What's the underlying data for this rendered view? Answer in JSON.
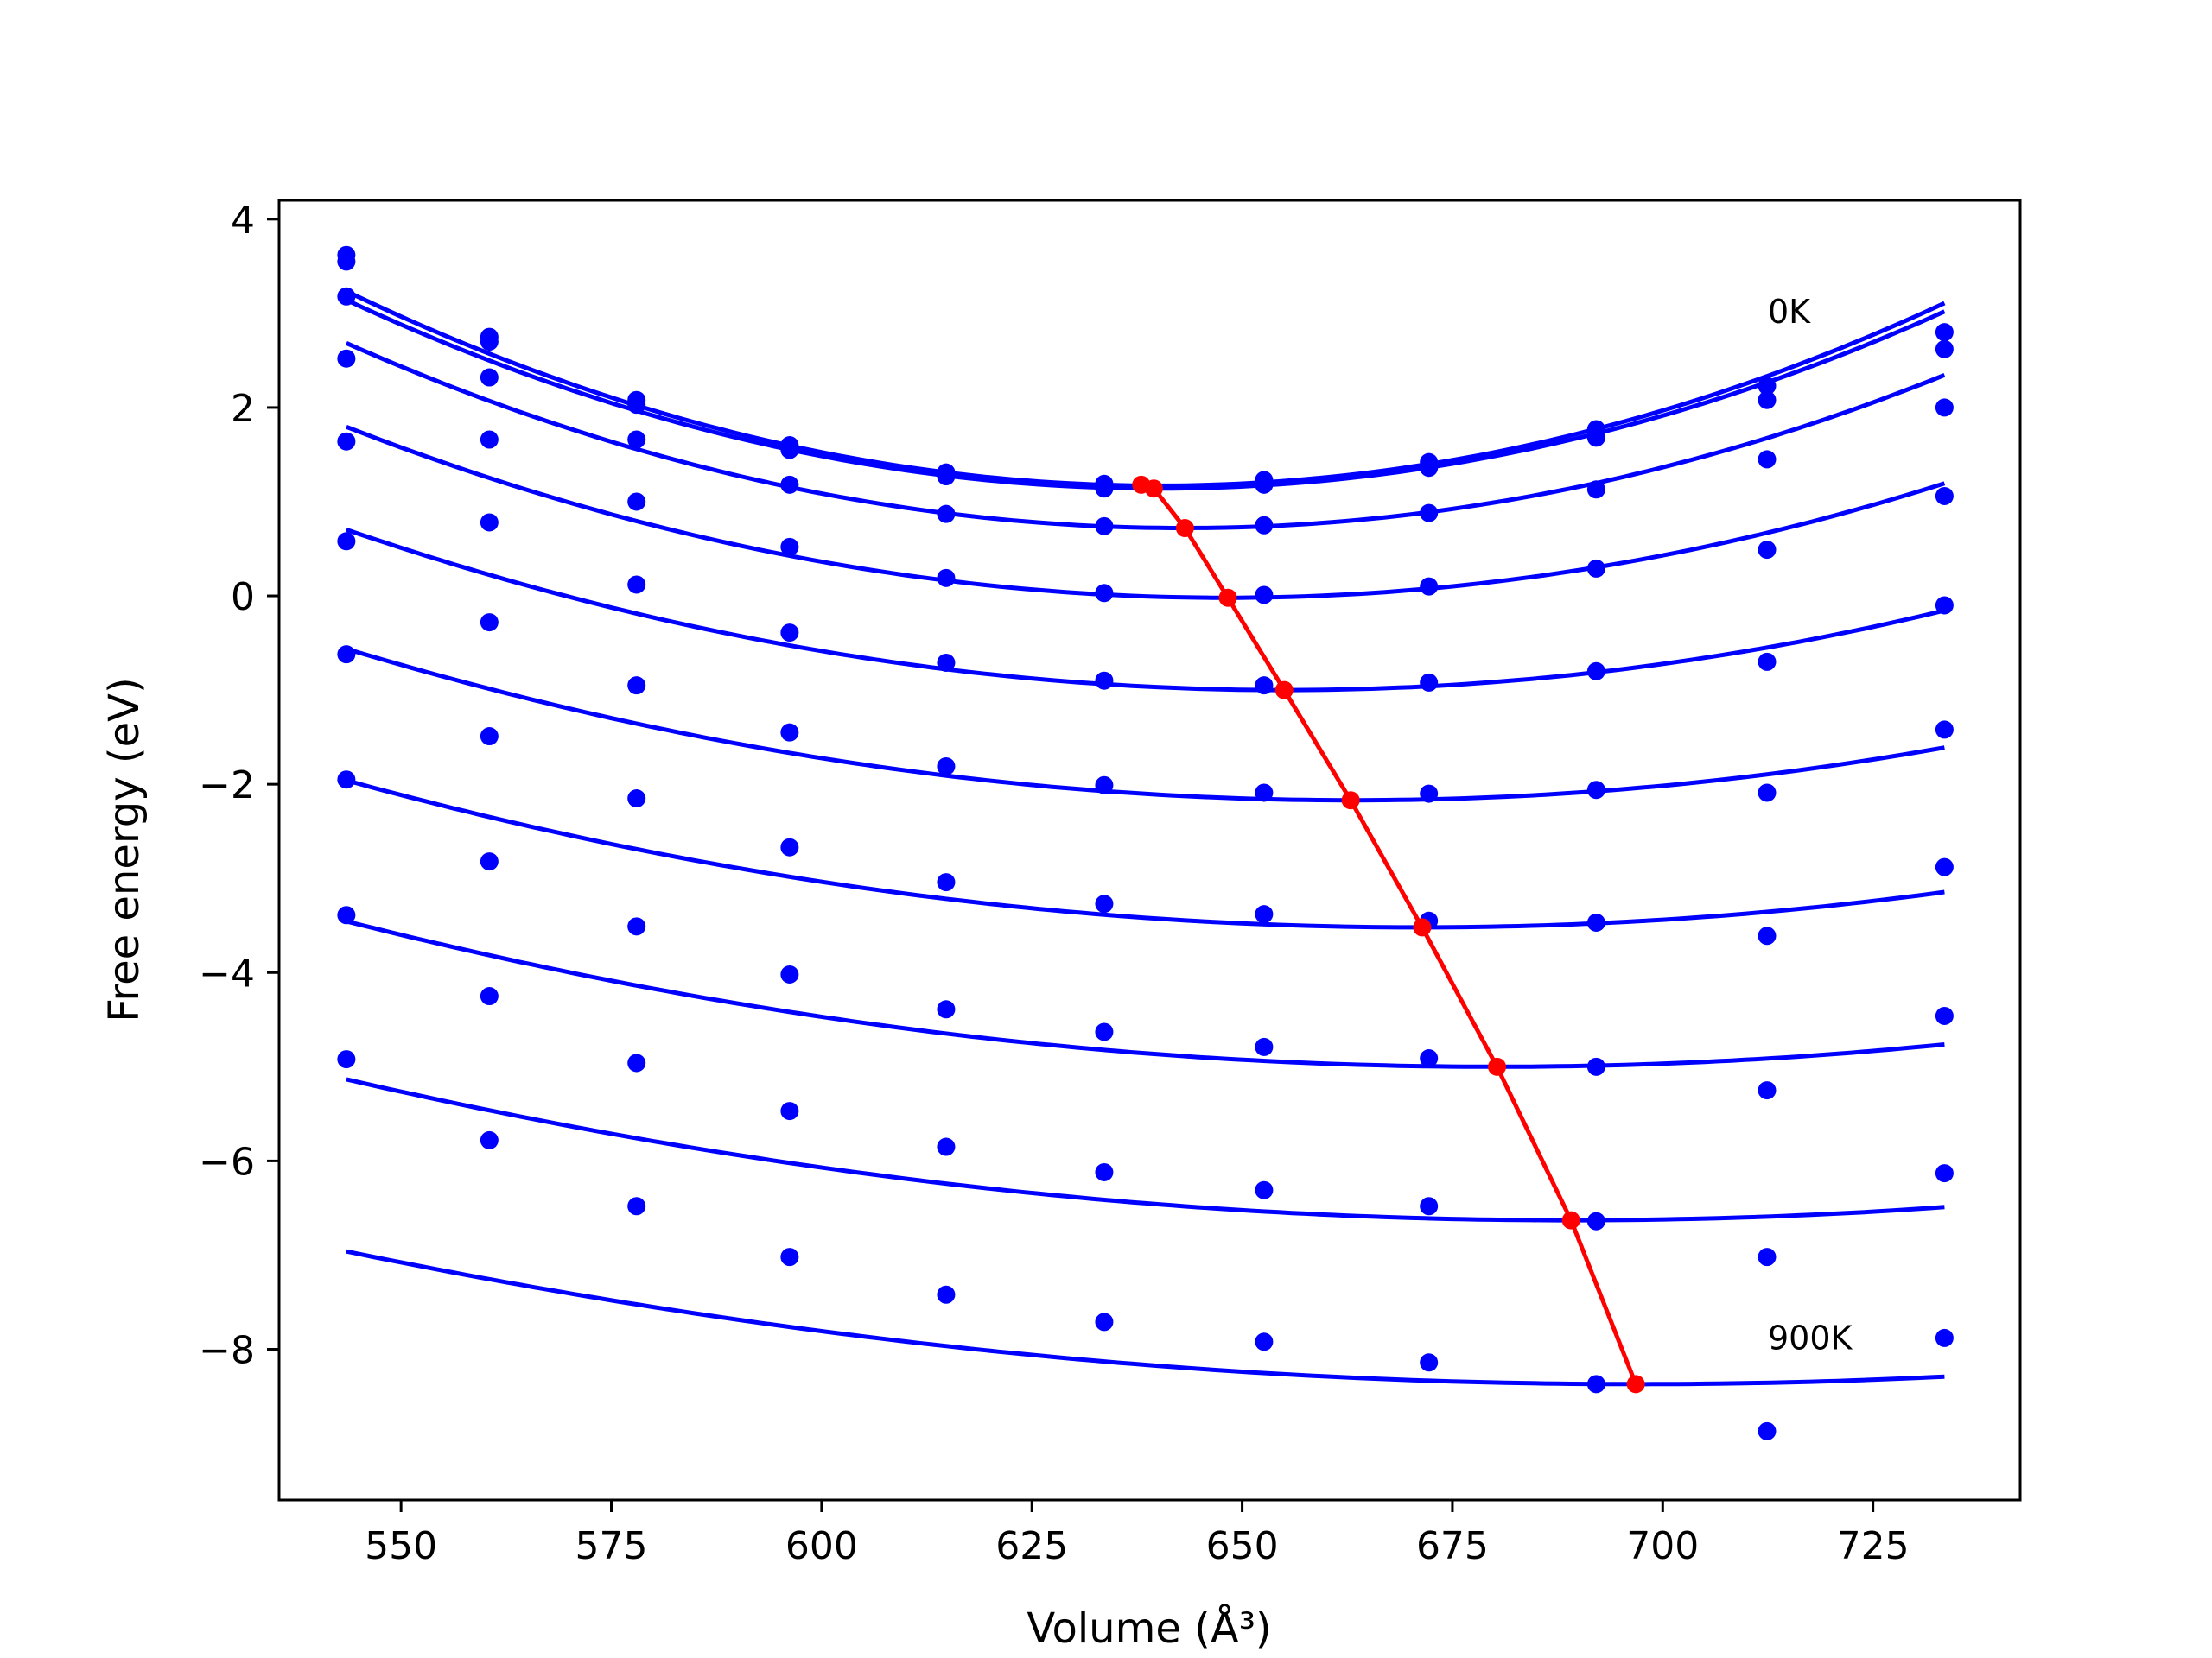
{
  "chart_data": {
    "type": "scatter",
    "xlabel": "Volume (Å³)",
    "ylabel": "Free energy (eV)",
    "xlim": [
      535.5,
      742.5
    ],
    "ylim": [
      -9.6,
      4.2
    ],
    "xticks": [
      550,
      575,
      600,
      625,
      650,
      675,
      700,
      725
    ],
    "xtick_labels": [
      "550",
      "575",
      "600",
      "625",
      "650",
      "675",
      "700",
      "725"
    ],
    "yticks": [
      -8,
      -6,
      -4,
      -2,
      0,
      2,
      4
    ],
    "ytick_labels": [
      "−8",
      "−6",
      "−4",
      "−2",
      "0",
      "2",
      "4"
    ],
    "grid": false,
    "x": [
      543.5,
      560.5,
      578.0,
      596.2,
      614.8,
      633.6,
      652.6,
      672.2,
      692.1,
      712.4,
      733.5
    ],
    "series": [
      {
        "values": [
          3.62,
          2.75,
          2.08,
          1.6,
          1.31,
          1.19,
          1.23,
          1.42,
          1.77,
          2.23,
          2.8
        ],
        "fit": {
          "a": 0.0002218,
          "v0": 640.0,
          "f0": 1.17
        }
      },
      {
        "values": [
          3.55,
          2.7,
          2.03,
          1.55,
          1.27,
          1.14,
          1.18,
          1.36,
          1.68,
          2.08,
          2.62
        ],
        "fit": {
          "a": 0.000215,
          "v0": 640.0,
          "f0": 1.14
        }
      },
      {
        "values": [
          3.18,
          2.32,
          1.66,
          1.18,
          0.87,
          0.74,
          0.75,
          0.88,
          1.13,
          1.45,
          2.0
        ],
        "fit": {
          "a": 0.0001984,
          "v0": 643.0,
          "f0": 0.72
        }
      },
      {
        "values": [
          2.52,
          1.66,
          1.0,
          0.52,
          0.19,
          0.03,
          0.01,
          0.1,
          0.29,
          0.49,
          1.06
        ],
        "fit": {
          "a": 0.0001662,
          "v0": 648.0,
          "f0": -0.02
        }
      },
      {
        "values": [
          1.64,
          0.78,
          0.12,
          -0.39,
          -0.71,
          -0.9,
          -0.95,
          -0.92,
          -0.8,
          -0.7,
          -0.1
        ],
        "fit": {
          "a": 0.000137,
          "v0": 655.0,
          "f0": -1.0
        }
      },
      {
        "values": [
          0.58,
          -0.28,
          -0.95,
          -1.45,
          -1.81,
          -2.01,
          -2.09,
          -2.1,
          -2.06,
          -2.09,
          -1.42
        ],
        "fit": {
          "a": 0.0001126,
          "v0": 663.0,
          "f0": -2.17
        }
      },
      {
        "values": [
          -0.62,
          -1.49,
          -2.15,
          -2.67,
          -3.04,
          -3.27,
          -3.38,
          -3.45,
          -3.47,
          -3.61,
          -2.88
        ],
        "fit": {
          "a": 9.6e-05,
          "v0": 671.0,
          "f0": -3.52
        }
      },
      {
        "values": [
          -1.95,
          -2.82,
          -3.51,
          -4.02,
          -4.39,
          -4.63,
          -4.79,
          -4.91,
          -5.0,
          -5.25,
          -4.46
        ],
        "fit": {
          "a": 8.29e-05,
          "v0": 680.0,
          "f0": -5.0
        }
      },
      {
        "values": [
          -3.39,
          -4.25,
          -4.96,
          -5.47,
          -5.85,
          -6.12,
          -6.31,
          -6.48,
          -6.64,
          -7.02,
          -6.13
        ],
        "fit": {
          "a": 7.07e-05,
          "v0": 689.0,
          "f0": -6.63
        }
      },
      {
        "values": [
          -4.92,
          -5.78,
          -6.48,
          -7.02,
          -7.42,
          -7.71,
          -7.92,
          -8.14,
          -8.37,
          -8.87,
          -7.88
        ],
        "fit": {
          "a": 5.98e-05,
          "v0": 697.0,
          "f0": -8.37
        }
      }
    ],
    "minima": {
      "x": [
        638.0,
        639.5,
        643.2,
        648.3,
        655.0,
        662.9,
        671.4,
        680.3,
        689.1,
        696.8
      ],
      "y": [
        1.18,
        1.14,
        0.72,
        -0.02,
        -1.0,
        -2.17,
        -3.52,
        -5.0,
        -6.63,
        -8.37
      ]
    },
    "annotations": [
      {
        "text": "0K",
        "x": 712.5,
        "y": 2.9
      },
      {
        "text": "900K",
        "x": 712.5,
        "y": -8.0
      }
    ],
    "colors": {
      "series": "#0000ff",
      "minima": "#ff0000",
      "axes": "#000000"
    }
  }
}
